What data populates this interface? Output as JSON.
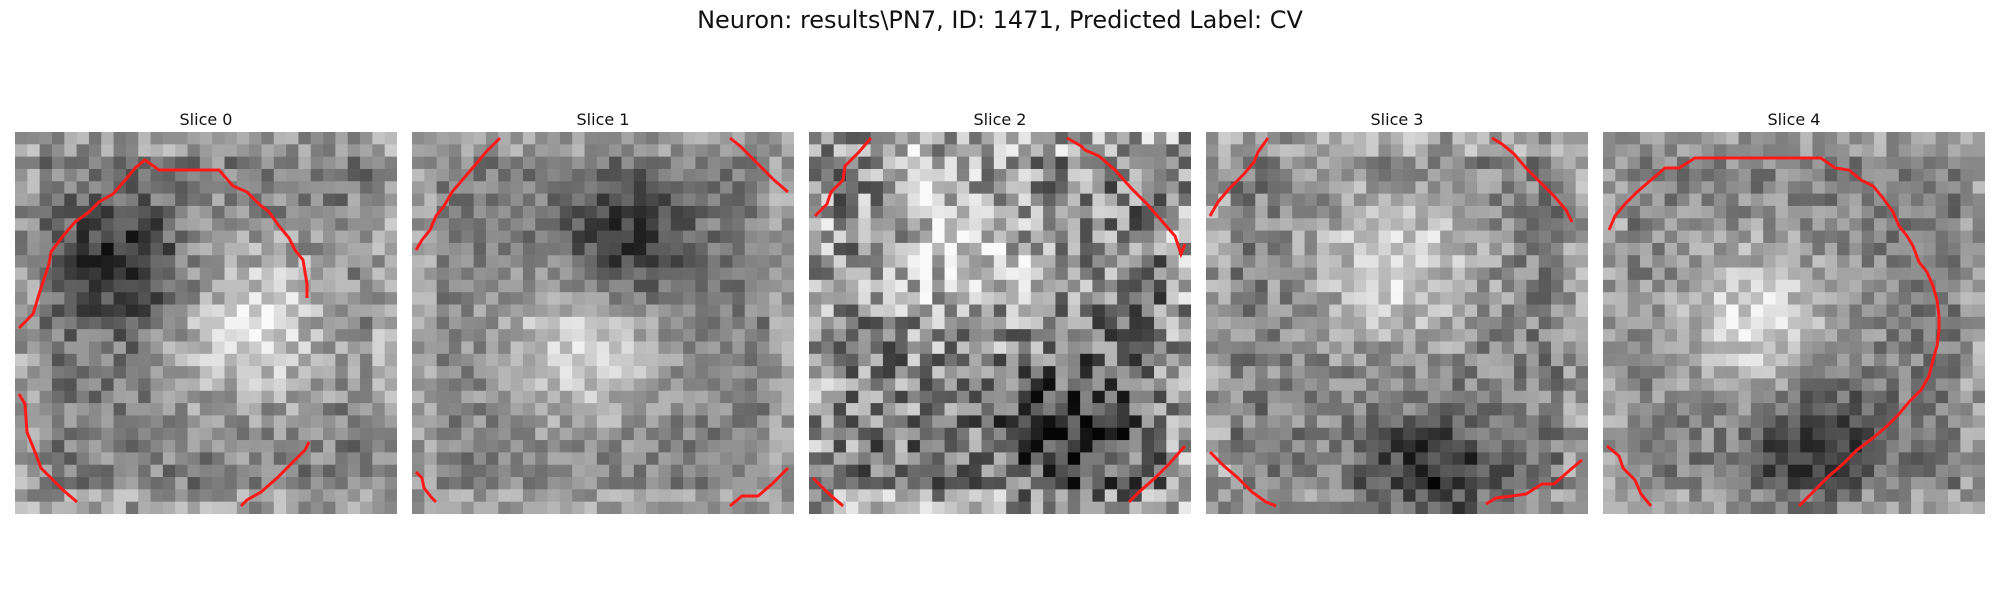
{
  "figure": {
    "title": "Neuron: results\\PN7, ID: 1471, Predicted Label: CV"
  },
  "panels": [
    {
      "title": "Slice 0",
      "seed": 11,
      "dark_center": [
        0.28,
        0.35
      ],
      "bright_center": [
        0.62,
        0.5
      ],
      "noise": 0.18
    },
    {
      "title": "Slice 1",
      "seed": 23,
      "dark_center": [
        0.55,
        0.3
      ],
      "bright_center": [
        0.45,
        0.55
      ],
      "noise": 0.14
    },
    {
      "title": "Slice 2",
      "seed": 37,
      "dark_center": [
        0.7,
        0.8
      ],
      "bright_center": [
        0.4,
        0.3
      ],
      "noise": 0.32
    },
    {
      "title": "Slice 3",
      "seed": 41,
      "dark_center": [
        0.6,
        0.92
      ],
      "bright_center": [
        0.5,
        0.35
      ],
      "noise": 0.18
    },
    {
      "title": "Slice 4",
      "seed": 53,
      "dark_center": [
        0.55,
        0.82
      ],
      "bright_center": [
        0.4,
        0.5
      ],
      "noise": 0.16
    }
  ],
  "contour_color": "#ff1a1a",
  "colormap": "gray"
}
